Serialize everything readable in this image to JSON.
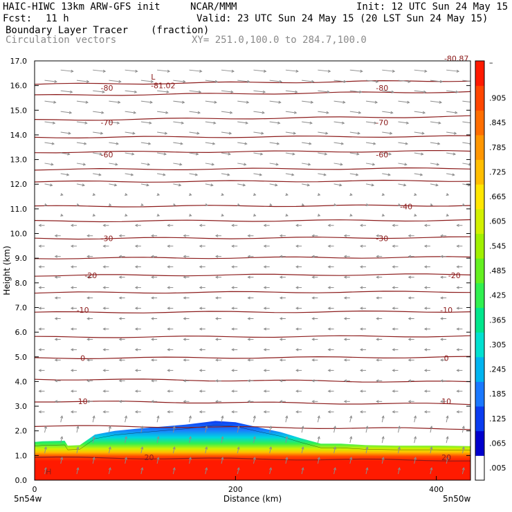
{
  "header": {
    "model": "HAIC-HIWC 13km ARW-GFS init",
    "org": "NCAR/MMM",
    "init": "Init: 12 UTC Sun 24 May 15",
    "fcst_label": "Fcst:",
    "fcst_value": "11 h",
    "valid": "Valid: 23 UTC Sun 24 May 15 (20 LST Sun 24 May 15)",
    "field1_name": "Boundary Layer Tracer",
    "field1_units": "(fraction)",
    "field2_name": "Circulation vectors",
    "xy_range": "XY= 251.0,100.0 to 284.7,100.0"
  },
  "colors": {
    "contour": "#8b1a1a",
    "vector": "#8c8c8c",
    "red": "#ff1a00",
    "blue": "#0a3cf0"
  },
  "chart_data": {
    "type": "heatmap",
    "title": "Boundary Layer Tracer",
    "xlabel": "Distance (km)",
    "ylabel": "Height (km)",
    "xlim": [
      0,
      434
    ],
    "ylim": [
      0,
      17
    ],
    "x_ticks": [
      "0",
      "200",
      "400"
    ],
    "y_ticks": [
      "0.0",
      "1.0",
      "2.0",
      "3.0",
      "4.0",
      "5.0",
      "6.0",
      "7.0",
      "8.0",
      "9.0",
      "10.0",
      "11.0",
      "12.0",
      "13.0",
      "14.0",
      "15.0",
      "16.0",
      "17.0"
    ],
    "x_end_labels": {
      "left": "5n54w",
      "right": "5n50w"
    },
    "colorbar": {
      "labels": [
        ".005",
        ".065",
        ".125",
        ".185",
        ".245",
        ".305",
        ".365",
        ".425",
        ".485",
        ".545",
        ".605",
        ".665",
        ".725",
        ".785",
        ".845",
        ".905"
      ],
      "top_label": "–",
      "colors": [
        "#ffffff",
        "#0000cd",
        "#0a3cf0",
        "#1a78ff",
        "#00b4f0",
        "#00e0d0",
        "#00e68c",
        "#30f050",
        "#64f020",
        "#a0f000",
        "#d2f000",
        "#ffe600",
        "#ffbe00",
        "#ff9600",
        "#ff6e00",
        "#ff4600",
        "#ff1a00"
      ]
    },
    "tracer_top_km": [
      [
        0,
        1.55
      ],
      [
        8,
        1.58
      ],
      [
        30,
        1.6
      ],
      [
        33,
        1.4
      ],
      [
        45,
        1.42
      ],
      [
        60,
        1.85
      ],
      [
        80,
        2.0
      ],
      [
        100,
        2.08
      ],
      [
        120,
        2.15
      ],
      [
        150,
        2.25
      ],
      [
        170,
        2.35
      ],
      [
        180,
        2.4
      ],
      [
        200,
        2.35
      ],
      [
        225,
        2.12
      ],
      [
        245,
        1.95
      ],
      [
        265,
        1.7
      ],
      [
        285,
        1.48
      ],
      [
        305,
        1.48
      ],
      [
        330,
        1.42
      ],
      [
        360,
        1.4
      ],
      [
        400,
        1.4
      ],
      [
        434,
        1.38
      ]
    ],
    "temperature_contour_labels": [
      {
        "value": "-80",
        "x": [
          72,
          346
        ],
        "z": 15.9
      },
      {
        "value": "-70",
        "x": [
          72,
          346
        ],
        "z": 14.5
      },
      {
        "value": "-60",
        "x": [
          72,
          346
        ],
        "z": 13.2
      },
      {
        "value": "-40",
        "x": [
          370
        ],
        "z": 11.1
      },
      {
        "value": "-30",
        "x": [
          72,
          346
        ],
        "z": 9.8
      },
      {
        "value": "-20",
        "x": [
          56,
          418
        ],
        "z": 8.3
      },
      {
        "value": "-10",
        "x": [
          48,
          410
        ],
        "z": 6.9
      },
      {
        "value": "0",
        "x": [
          48,
          410
        ],
        "z": 4.95
      },
      {
        "value": "10",
        "x": [
          48,
          410
        ],
        "z": 3.2
      },
      {
        "value": "20",
        "x": [
          114,
          410
        ],
        "z": 0.92
      }
    ],
    "extra_labels": [
      {
        "text": "-81.02",
        "x": 128,
        "z": 16.0
      },
      {
        "text": "L",
        "x": 118,
        "z": 16.35
      },
      {
        "text": "-80.87",
        "x": 420,
        "z": 17.1
      },
      {
        "text": "H",
        "x": 14,
        "z": 0.35
      }
    ]
  }
}
